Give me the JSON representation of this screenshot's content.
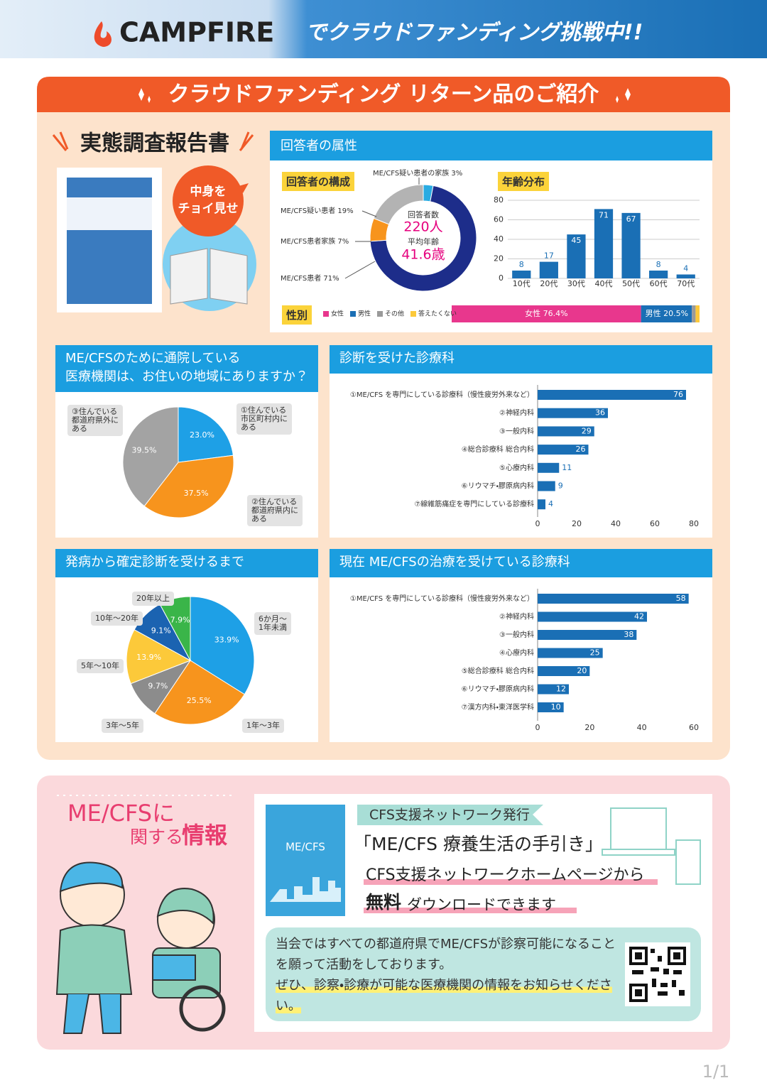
{
  "header": {
    "brand": "CAMPFIRE",
    "slogan": "でクラウドファンディング挑戦中!!"
  },
  "banner": "クラウドファンディング リターン品のご紹介",
  "report": {
    "title": "実態調査報告書",
    "teaser": "中身を\nチョイ見せ"
  },
  "attributes_title": "回答者の属性",
  "chart_data": [
    {
      "type": "donut",
      "title": "回答者の構成",
      "categories": [
        "ME/CFS疑い患者の家族 3%",
        "ME/CFS患者 71%",
        "ME/CFS患者家族 7%",
        "ME/CFS疑い患者 19%"
      ],
      "values": [
        3,
        71,
        7,
        19
      ],
      "colors": [
        "#29abe2",
        "#1d2d8a",
        "#f7941d",
        "#b3b3b3"
      ],
      "annotations": [
        "回答者数",
        "220人",
        "平均年齢",
        "41.6歳"
      ]
    },
    {
      "type": "bar",
      "title": "年齢分布",
      "categories": [
        "10代",
        "20代",
        "30代",
        "40代",
        "50代",
        "60代",
        "70代"
      ],
      "values": [
        8,
        17,
        45,
        71,
        67,
        8,
        4
      ],
      "color": "#1a6fb5",
      "ylim": [
        0,
        80
      ],
      "yticks": [
        0,
        20,
        40,
        60,
        80
      ],
      "grid": true
    },
    {
      "type": "stacked-bar",
      "title": "性別",
      "xlim": [
        0,
        100
      ],
      "series": [
        {
          "name": "女性",
          "color": "#e8378d",
          "values": [
            76.4
          ],
          "value_labels": [
            "女性 76.4%"
          ]
        },
        {
          "name": "男性",
          "color": "#1a6fb5",
          "values": [
            20.5
          ],
          "value_labels": [
            "男性 20.5%"
          ]
        },
        {
          "name": "その他",
          "color": "#9a9a9a",
          "values": [
            1.5
          ]
        },
        {
          "name": "答えたくない",
          "color": "#fcc93a",
          "values": [
            1.6
          ]
        }
      ]
    },
    {
      "type": "pie",
      "title": "ME/CFSのために通院している\n医療機関は、お住いの地域にありますか？",
      "categories": [
        "①住んでいる\n市区町村内に\nある",
        "②住んでいる\n都道府県内に\nある",
        "③住んでいる\n都道府県外に\nある"
      ],
      "values": [
        23.0,
        37.5,
        39.5
      ],
      "value_labels": [
        "23.0%",
        "37.5%",
        "39.5%"
      ],
      "colors": [
        "#1ea0e6",
        "#f7941d",
        "#a3a3a3"
      ]
    },
    {
      "type": "hbar",
      "title": "診断を受けた診療科",
      "categories": [
        "①ME/CFS を専門にしている診療科（慢性疲労外来など）",
        "②神経内科",
        "③一般内科",
        "④総合診療科 総合内科",
        "⑤心療内科",
        "⑥リウマチ・膠原病内科",
        "⑦線維筋痛症を専門にしている診療科"
      ],
      "values": [
        76,
        36,
        29,
        26,
        11,
        9,
        4
      ],
      "color": "#1a6fb5",
      "xlim": [
        0,
        80
      ],
      "xticks": [
        0,
        20,
        40,
        60,
        80
      ]
    },
    {
      "type": "pie",
      "title": "発病から確定診断を受けるまで",
      "categories": [
        "6か月〜\n1年未満",
        "1年〜3年",
        "3年〜5年",
        "5年〜10年",
        "10年〜20年",
        "20年以上"
      ],
      "values": [
        33.9,
        25.5,
        9.7,
        13.9,
        9.1,
        7.9
      ],
      "value_labels": [
        "33.9%",
        "25.5%",
        "9.7%",
        "13.9%",
        "9.1%",
        "7.9%"
      ],
      "colors": [
        "#1ea0e6",
        "#f7941d",
        "#8c8c8c",
        "#fcc93a",
        "#1b63b1",
        "#3ab549"
      ]
    },
    {
      "type": "hbar",
      "title": "現在 ME/CFSの治療を受けている診療科",
      "categories": [
        "①ME/CFS を専門にしている診療科（慢性疲労外来など）",
        "②神経内科",
        "③一般内科",
        "④心療内科",
        "⑤総合診療科 総合内科",
        "⑥リウマチ・膠原病内科",
        "⑦漢方内科・東洋医学科"
      ],
      "values": [
        58,
        42,
        38,
        25,
        20,
        12,
        10
      ],
      "color": "#1a6fb5",
      "xlim": [
        0,
        60
      ],
      "xticks": [
        0,
        20,
        40,
        60
      ]
    }
  ],
  "info": {
    "title_1": "ME/CFSに",
    "title_2": "関する",
    "title_3": "情報",
    "book_cover": "ME/CFS",
    "publisher": "CFS支援ネットワーク発行",
    "book": "「ME/CFS 療養生活の手引き」",
    "download_1": "CFS支援ネットワークホームページから",
    "download_2a": "無料",
    "download_2b": "ダウンロードできます",
    "message": "当会ではすべての都道府県でME/CFSが診察可能になることを願って活動をしております。",
    "request": "ぜひ、診察・診療が可能な医療機関の情報をお知らせください。"
  },
  "page_indicator": "1/1"
}
